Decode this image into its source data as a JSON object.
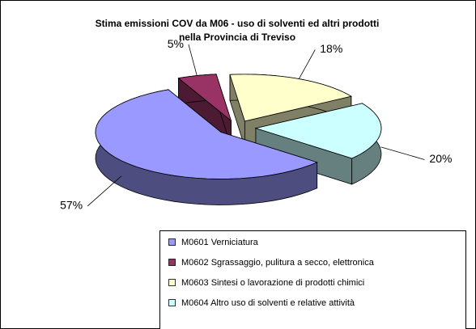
{
  "chart_data": {
    "type": "pie3d",
    "title": [
      "Stima emissioni COV da M06 - uso di solventi ed altri prodotti",
      "nella Provincia di Treviso"
    ],
    "categories": [
      "M0601 Verniciatura",
      "M0602 Sgrassaggio, pulitura a secco, elettronica",
      "M0603 Sintesi o lavorazione di prodotti chimici",
      "M0604 Altro uso di solventi e relative attività"
    ],
    "values": [
      57,
      5,
      18,
      20
    ],
    "value_labels": [
      "57%",
      "5%",
      "18%",
      "20%"
    ],
    "colors": [
      "#9999ff",
      "#993366",
      "#ffffcc",
      "#ccffff"
    ],
    "legend": "bottom"
  }
}
